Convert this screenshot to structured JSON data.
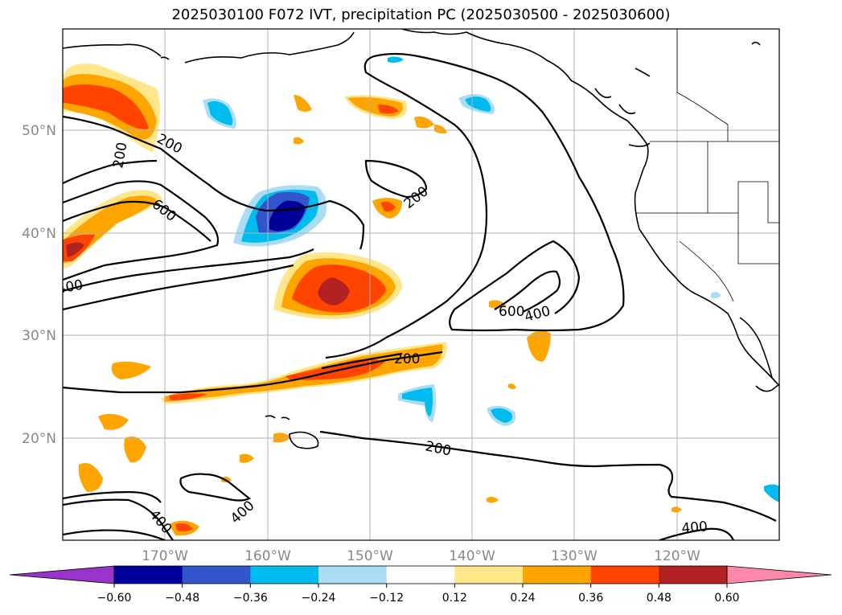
{
  "title": "2025030100 F072 IVT, precipitation PC (2025030500 - 2025030600)",
  "map": {
    "lon_labels": [
      "170°W",
      "160°W",
      "150°W",
      "140°W",
      "130°W",
      "120°W"
    ],
    "lat_labels": [
      "50°N",
      "40°N",
      "30°N",
      "20°N"
    ],
    "contour_labels": [
      "200",
      "200",
      "200",
      "200",
      "200",
      "400",
      "400",
      "400",
      "400",
      "600",
      "600"
    ]
  },
  "colorbar": {
    "ticks": [
      "−0.60",
      "−0.48",
      "−0.36",
      "−0.24",
      "−0.12",
      "0.12",
      "0.24",
      "0.36",
      "0.48",
      "0.60"
    ],
    "colors": [
      "#9933cc",
      "#000099",
      "#3355cc",
      "#00bbee",
      "#aaddf5",
      "#ffffff",
      "#ffe68a",
      "#ffa500",
      "#ff4400",
      "#b22222",
      "#ff88aa"
    ]
  },
  "colors": {
    "dark_blue": "#000099",
    "mid_blue": "#3355cc",
    "cyan": "#00bbee",
    "light_blue": "#aaddf5",
    "light_yellow": "#ffe68a",
    "orange": "#ffa500",
    "red_orange": "#ff4400",
    "dark_red": "#b22222"
  }
}
